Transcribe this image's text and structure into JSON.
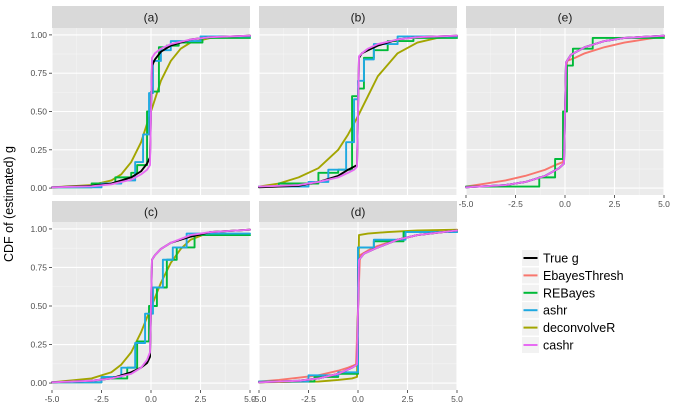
{
  "chart_data": {
    "type": "line",
    "ylabel": "CDF of (estimated) g",
    "xlabel": "",
    "xlim": [
      -5,
      5
    ],
    "ylim": [
      0,
      1
    ],
    "x_ticks": [
      "-5.0",
      "-2.5",
      "0.0",
      "2.5",
      "5.0"
    ],
    "y_ticks": [
      "0.00",
      "0.25",
      "0.50",
      "0.75",
      "1.00"
    ],
    "x_tick_values": [
      -5,
      -2.5,
      0,
      2.5,
      5
    ],
    "y_tick_values": [
      0,
      0.25,
      0.5,
      0.75,
      1
    ],
    "legend_position": "right",
    "grid": true,
    "legend": [
      {
        "name": "True g",
        "color": "#000000"
      },
      {
        "name": "EbayesThresh",
        "color": "#F8766D"
      },
      {
        "name": "REBayes",
        "color": "#00BA38"
      },
      {
        "name": "ashr",
        "color": "#1FA9E1"
      },
      {
        "name": "deconvolveR",
        "color": "#A3A500"
      },
      {
        "name": "cashr",
        "color": "#E76BF3"
      }
    ],
    "panels": [
      {
        "label": "(a)",
        "series": [
          {
            "key": "True g",
            "x": [
              -5,
              -3,
              -2,
              -1,
              -0.5,
              -0.2,
              -0.05,
              0.05,
              0.2,
              0.5,
              1,
              2,
              3,
              5
            ],
            "y": [
              0.005,
              0.015,
              0.03,
              0.07,
              0.11,
              0.16,
              0.2,
              0.8,
              0.84,
              0.89,
              0.93,
              0.97,
              0.985,
              0.995
            ]
          },
          {
            "key": "REBayes",
            "x": [
              -5,
              -3,
              -3,
              -1.8,
              -1.8,
              -1,
              -1,
              -0.7,
              -0.7,
              -0.2,
              -0.2,
              0,
              0,
              0.4,
              0.4,
              0.8,
              0.8,
              1.4,
              1.4,
              2.6,
              2.6,
              5
            ],
            "y": [
              0.005,
              0.005,
              0.03,
              0.03,
              0.07,
              0.07,
              0.1,
              0.1,
              0.15,
              0.15,
              0.5,
              0.5,
              0.63,
              0.63,
              0.92,
              0.92,
              0.93,
              0.93,
              0.95,
              0.95,
              0.98,
              0.98
            ]
          },
          {
            "key": "ashr",
            "x": [
              -5,
              -2.5,
              -2.5,
              -1.5,
              -1.5,
              -0.8,
              -0.8,
              -0.4,
              -0.4,
              -0.1,
              -0.1,
              0.1,
              0.1,
              0.5,
              0.5,
              1,
              1,
              2.5,
              2.5,
              5
            ],
            "y": [
              0.005,
              0.005,
              0.03,
              0.03,
              0.05,
              0.05,
              0.17,
              0.17,
              0.35,
              0.35,
              0.62,
              0.62,
              0.83,
              0.83,
              0.9,
              0.9,
              0.96,
              0.96,
              0.99,
              0.99
            ]
          },
          {
            "key": "deconvolveR",
            "x": [
              -5,
              -3,
              -2,
              -1.5,
              -1,
              -0.5,
              0,
              0.5,
              1,
              1.5,
              2,
              3,
              5
            ],
            "y": [
              0.005,
              0.02,
              0.05,
              0.09,
              0.17,
              0.3,
              0.5,
              0.7,
              0.83,
              0.91,
              0.95,
              0.98,
              0.995
            ]
          },
          {
            "key": "cashr",
            "x": [
              -5,
              -3,
              -2,
              -1,
              -0.5,
              -0.2,
              -0.05,
              0.05,
              0.2,
              0.5,
              1,
              2,
              3,
              5
            ],
            "y": [
              0.005,
              0.012,
              0.025,
              0.055,
              0.09,
              0.12,
              0.15,
              0.85,
              0.88,
              0.91,
              0.94,
              0.97,
              0.985,
              0.995
            ]
          }
        ]
      },
      {
        "label": "(b)",
        "series": [
          {
            "key": "True g",
            "x": [
              -5,
              -3,
              -2,
              -1,
              -0.5,
              -0.2,
              -0.05,
              0.05,
              0.2,
              0.5,
              1,
              2,
              3,
              5
            ],
            "y": [
              0.005,
              0.015,
              0.04,
              0.08,
              0.12,
              0.14,
              0.15,
              0.85,
              0.88,
              0.9,
              0.93,
              0.97,
              0.985,
              0.995
            ]
          },
          {
            "key": "REBayes",
            "x": [
              -5,
              -4,
              -4,
              -2,
              -2,
              -1,
              -1,
              -0.3,
              -0.3,
              0,
              0,
              0.3,
              0.3,
              0.8,
              0.8,
              1.5,
              1.5,
              2.8,
              2.8,
              5
            ],
            "y": [
              0.01,
              0.01,
              0.03,
              0.03,
              0.1,
              0.1,
              0.12,
              0.12,
              0.6,
              0.6,
              0.65,
              0.65,
              0.85,
              0.85,
              0.9,
              0.9,
              0.96,
              0.96,
              0.98,
              0.98
            ]
          },
          {
            "key": "ashr",
            "x": [
              -5,
              -2.5,
              -2.5,
              -1.5,
              -1.5,
              -0.6,
              -0.6,
              -0.2,
              -0.2,
              0,
              0,
              0.3,
              0.3,
              0.8,
              0.8,
              2,
              2,
              5
            ],
            "y": [
              0.01,
              0.01,
              0.04,
              0.04,
              0.12,
              0.12,
              0.3,
              0.3,
              0.58,
              0.58,
              0.7,
              0.7,
              0.84,
              0.84,
              0.94,
              0.94,
              0.99,
              0.99
            ]
          },
          {
            "key": "deconvolveR",
            "x": [
              -5,
              -4,
              -3,
              -2,
              -1,
              -0.5,
              0,
              0.5,
              1,
              2,
              3,
              4,
              5
            ],
            "y": [
              0.01,
              0.03,
              0.07,
              0.13,
              0.25,
              0.35,
              0.47,
              0.6,
              0.73,
              0.88,
              0.95,
              0.98,
              0.99
            ]
          },
          {
            "key": "cashr",
            "x": [
              -5,
              -3,
              -2,
              -1,
              -0.5,
              -0.2,
              -0.05,
              0.05,
              0.2,
              0.5,
              1,
              2,
              3,
              5
            ],
            "y": [
              0.01,
              0.02,
              0.04,
              0.07,
              0.1,
              0.12,
              0.14,
              0.86,
              0.88,
              0.91,
              0.94,
              0.97,
              0.985,
              0.995
            ]
          }
        ]
      },
      {
        "label": "(e)",
        "series": [
          {
            "key": "True g",
            "x": [
              -5,
              -3,
              -2,
              -1,
              -0.3,
              -0.05,
              0.05,
              0.3,
              1,
              2,
              3,
              5
            ],
            "y": [
              0.005,
              0.02,
              0.04,
              0.08,
              0.13,
              0.16,
              0.82,
              0.87,
              0.92,
              0.96,
              0.98,
              0.995
            ]
          },
          {
            "key": "EbayesThresh",
            "x": [
              -5,
              -4,
              -3,
              -2,
              -1,
              -0.5,
              -0.1,
              0.1,
              0.5,
              1,
              2,
              3,
              4,
              5
            ],
            "y": [
              0.01,
              0.03,
              0.05,
              0.08,
              0.12,
              0.15,
              0.17,
              0.83,
              0.85,
              0.88,
              0.92,
              0.95,
              0.97,
              0.99
            ]
          },
          {
            "key": "REBayes",
            "x": [
              -5,
              -1.3,
              -1.3,
              -0.5,
              -0.5,
              -0.1,
              -0.1,
              0.1,
              0.1,
              0.4,
              0.4,
              1.4,
              1.4,
              5
            ],
            "y": [
              0.01,
              0.01,
              0.07,
              0.07,
              0.19,
              0.19,
              0.5,
              0.5,
              0.8,
              0.8,
              0.91,
              0.91,
              0.98,
              0.98
            ]
          },
          {
            "key": "ashr",
            "x": [
              -5,
              -3,
              -2,
              -1,
              -0.3,
              -0.05,
              0.05,
              0.3,
              1,
              2,
              3,
              5
            ],
            "y": [
              0.005,
              0.02,
              0.04,
              0.08,
              0.13,
              0.16,
              0.82,
              0.87,
              0.92,
              0.96,
              0.98,
              0.995
            ]
          },
          {
            "key": "cashr",
            "x": [
              -5,
              -3,
              -2,
              -1,
              -0.3,
              -0.05,
              0.05,
              0.3,
              1,
              2,
              3,
              5
            ],
            "y": [
              0.005,
              0.02,
              0.04,
              0.08,
              0.13,
              0.16,
              0.82,
              0.87,
              0.92,
              0.96,
              0.98,
              0.995
            ]
          }
        ]
      },
      {
        "label": "(c)",
        "series": [
          {
            "key": "True g",
            "x": [
              -5,
              -3,
              -2,
              -1,
              -0.5,
              -0.2,
              -0.05,
              0.05,
              0.2,
              0.5,
              1,
              2,
              3,
              5
            ],
            "y": [
              0.005,
              0.015,
              0.03,
              0.07,
              0.1,
              0.13,
              0.17,
              0.8,
              0.83,
              0.87,
              0.91,
              0.95,
              0.98,
              0.995
            ]
          },
          {
            "key": "REBayes",
            "x": [
              -5,
              -2.5,
              -2.5,
              -1.2,
              -1.2,
              -0.7,
              -0.7,
              -0.1,
              -0.1,
              0.3,
              0.3,
              0.8,
              0.8,
              1.3,
              1.3,
              2.2,
              2.2,
              5
            ],
            "y": [
              0.005,
              0.005,
              0.03,
              0.03,
              0.1,
              0.1,
              0.27,
              0.27,
              0.5,
              0.5,
              0.62,
              0.62,
              0.8,
              0.8,
              0.88,
              0.88,
              0.96,
              0.96
            ]
          },
          {
            "key": "ashr",
            "x": [
              -5,
              -2.5,
              -2.5,
              -1.5,
              -1.5,
              -0.8,
              -0.8,
              -0.3,
              -0.3,
              0.1,
              0.1,
              0.6,
              0.6,
              1.1,
              1.1,
              1.8,
              1.8,
              5
            ],
            "y": [
              0.005,
              0.005,
              0.04,
              0.04,
              0.1,
              0.1,
              0.26,
              0.26,
              0.45,
              0.45,
              0.62,
              0.62,
              0.8,
              0.8,
              0.88,
              0.88,
              0.97,
              0.97
            ]
          },
          {
            "key": "deconvolveR",
            "x": [
              -5,
              -3,
              -2,
              -1.5,
              -1,
              -0.5,
              0,
              0.5,
              1,
              1.5,
              2,
              3,
              5
            ],
            "y": [
              0.005,
              0.03,
              0.07,
              0.12,
              0.2,
              0.33,
              0.49,
              0.65,
              0.78,
              0.87,
              0.93,
              0.98,
              0.995
            ]
          },
          {
            "key": "cashr",
            "x": [
              -5,
              -3,
              -2,
              -1,
              -0.5,
              -0.2,
              -0.05,
              0.05,
              0.2,
              0.5,
              1,
              2,
              3,
              5
            ],
            "y": [
              0.005,
              0.015,
              0.03,
              0.06,
              0.1,
              0.15,
              0.2,
              0.8,
              0.83,
              0.87,
              0.91,
              0.96,
              0.98,
              0.995
            ]
          }
        ]
      },
      {
        "label": "(d)",
        "series": [
          {
            "key": "True g",
            "x": [
              -5,
              -3,
              -2,
              -1,
              -0.3,
              -0.05,
              0.05,
              0.3,
              1,
              2,
              3,
              5
            ],
            "y": [
              0.005,
              0.015,
              0.03,
              0.06,
              0.1,
              0.12,
              0.8,
              0.84,
              0.88,
              0.93,
              0.96,
              0.99
            ]
          },
          {
            "key": "EbayesThresh",
            "x": [
              -5,
              -4,
              -3,
              -2,
              -1,
              -0.5,
              -0.1,
              0.1,
              0.5,
              1,
              2,
              3,
              4,
              5
            ],
            "y": [
              0.01,
              0.02,
              0.035,
              0.05,
              0.08,
              0.1,
              0.12,
              0.83,
              0.86,
              0.89,
              0.93,
              0.96,
              0.975,
              0.99
            ]
          },
          {
            "key": "REBayes",
            "x": [
              -5,
              -2.2,
              -2.2,
              -1,
              -1,
              0,
              0,
              0.8,
              0.8,
              2.3,
              2.3,
              5
            ],
            "y": [
              0.01,
              0.01,
              0.04,
              0.04,
              0.06,
              0.06,
              0.88,
              0.88,
              0.92,
              0.92,
              0.98,
              0.98
            ]
          },
          {
            "key": "ashr",
            "x": [
              -5,
              -2.5,
              -2.5,
              -1,
              -1,
              0,
              0,
              0.8,
              0.8,
              2.4,
              2.4,
              5
            ],
            "y": [
              0.01,
              0.01,
              0.05,
              0.05,
              0.07,
              0.07,
              0.88,
              0.88,
              0.93,
              0.93,
              0.98,
              0.98
            ]
          },
          {
            "key": "deconvolveR",
            "x": [
              -5,
              -2,
              -1,
              -0.3,
              -0.05,
              0.05,
              0.5,
              1.5,
              3,
              5
            ],
            "y": [
              0.005,
              0.01,
              0.02,
              0.03,
              0.04,
              0.96,
              0.97,
              0.98,
              0.99,
              0.995
            ]
          },
          {
            "key": "cashr",
            "x": [
              -5,
              -3,
              -2,
              -1,
              -0.3,
              -0.05,
              0.05,
              0.3,
              1,
              2,
              3,
              5
            ],
            "y": [
              0.005,
              0.015,
              0.03,
              0.06,
              0.1,
              0.12,
              0.8,
              0.84,
              0.88,
              0.93,
              0.96,
              0.99
            ]
          }
        ]
      }
    ]
  }
}
